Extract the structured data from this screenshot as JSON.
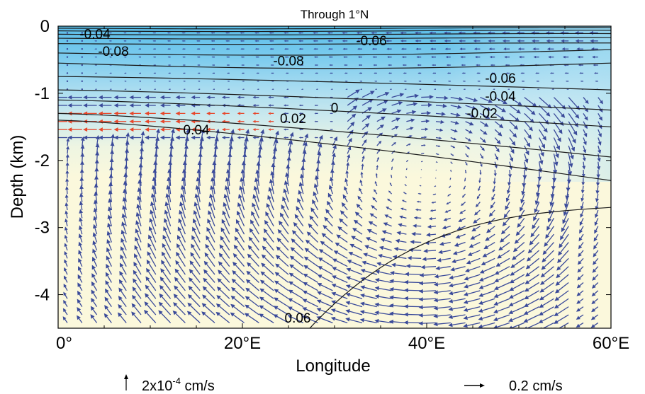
{
  "chart_data": {
    "type": "quiver",
    "title": "Through 1°N",
    "xlabel": "Longitude",
    "ylabel": "Depth (km)",
    "xlim": [
      0,
      60
    ],
    "ylim": [
      -4.5,
      0
    ],
    "xticks": [
      {
        "value": 0,
        "label": "0°"
      },
      {
        "value": 20,
        "label": "20°E"
      },
      {
        "value": 40,
        "label": "40°E"
      },
      {
        "value": 60,
        "label": "60°E"
      }
    ],
    "yticks": [
      {
        "value": 0,
        "label": "0"
      },
      {
        "value": -1,
        "label": "-1"
      },
      {
        "value": -2,
        "label": "-2"
      },
      {
        "value": -3,
        "label": "-3"
      },
      {
        "value": -4,
        "label": "-4"
      }
    ],
    "contour_labels": [
      {
        "text": "-0.04",
        "lon": 4,
        "depth": -0.12
      },
      {
        "text": "-0.08",
        "lon": 6,
        "depth": -0.38
      },
      {
        "text": "-0.06",
        "lon": 34,
        "depth": -0.22
      },
      {
        "text": "-0.08",
        "lon": 25,
        "depth": -0.52
      },
      {
        "text": "-0.06",
        "lon": 48,
        "depth": -0.78
      },
      {
        "text": "-0.04",
        "lon": 48,
        "depth": -1.05
      },
      {
        "text": "-0.02",
        "lon": 46,
        "depth": -1.3
      },
      {
        "text": "0",
        "lon": 30,
        "depth": -1.22
      },
      {
        "text": "0.02",
        "lon": 25.5,
        "depth": -1.38
      },
      {
        "text": "0.04",
        "lon": 15,
        "depth": -1.55
      },
      {
        "text": "0.06",
        "lon": 26,
        "depth": -4.35
      }
    ],
    "key": {
      "vertical": "2x10-4 cm/s",
      "horizontal": "0.2 cm/s"
    },
    "colors": {
      "upper_cool": "#64c0e8",
      "lower_warm": "#fbf8dc",
      "arrows": "#3a4a9a",
      "arrows_warm_band": "#e8462a"
    }
  },
  "key_labels": {
    "vertical_base": "2x10",
    "vertical_exp": "-4",
    "vertical_unit": " cm/s",
    "horizontal": "0.2 cm/s"
  }
}
